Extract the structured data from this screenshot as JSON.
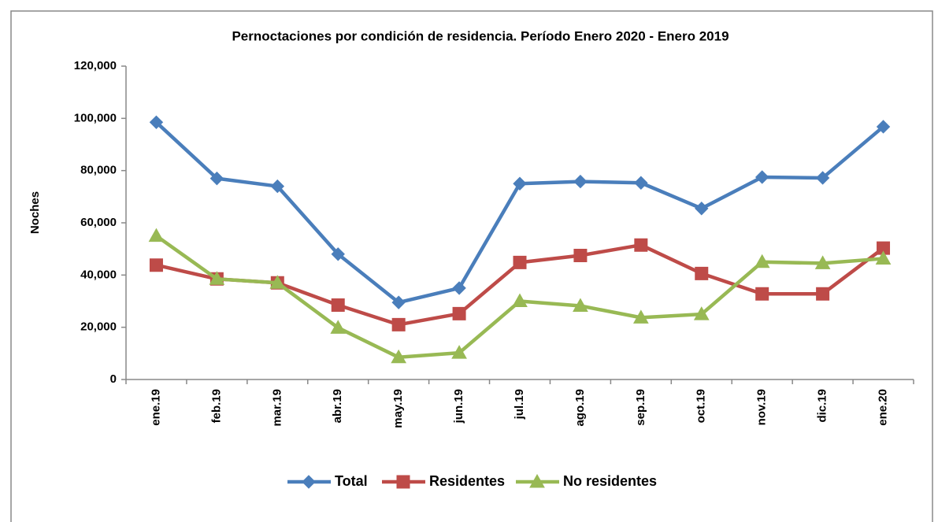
{
  "chart_data": {
    "type": "line",
    "title": "Pernoctaciones por condición de residencia. Período Enero 2020 - Enero 2019",
    "y_label": "Noches",
    "categories": [
      "ene.19",
      "feb.19",
      "mar.19",
      "abr.19",
      "may.19",
      "jun.19",
      "jul.19",
      "ago.19",
      "sep.19",
      "oct.19",
      "nov.19",
      "dic.19",
      "ene.20"
    ],
    "series": [
      {
        "name": "Total",
        "color": "#4a7ebb",
        "marker": "diamond",
        "values": [
          98500,
          77000,
          74000,
          48000,
          29500,
          35000,
          75000,
          75800,
          75300,
          65500,
          77500,
          77200,
          96800
        ]
      },
      {
        "name": "Residentes",
        "color": "#be4b48",
        "marker": "square",
        "values": [
          43800,
          38500,
          37000,
          28500,
          21000,
          25200,
          44800,
          47500,
          51500,
          40600,
          32800,
          32800,
          50300
        ]
      },
      {
        "name": "No residentes",
        "color": "#98b954",
        "marker": "triangle",
        "values": [
          55000,
          38500,
          37000,
          19800,
          8500,
          10200,
          30000,
          28200,
          23700,
          25000,
          45000,
          44500,
          46300
        ]
      }
    ],
    "ylim": [
      0,
      120000
    ],
    "yticks": [
      0,
      {
        "value": 20000,
        "label": "20,000"
      },
      {
        "value": 40000,
        "label": "40,000"
      },
      {
        "value": 60000,
        "label": "60,000"
      },
      {
        "value": 80000,
        "label": "80,000"
      },
      {
        "value": 100000,
        "label": "100,000"
      },
      {
        "value": 120000,
        "label": "120,000"
      }
    ],
    "legend": "bottom"
  }
}
